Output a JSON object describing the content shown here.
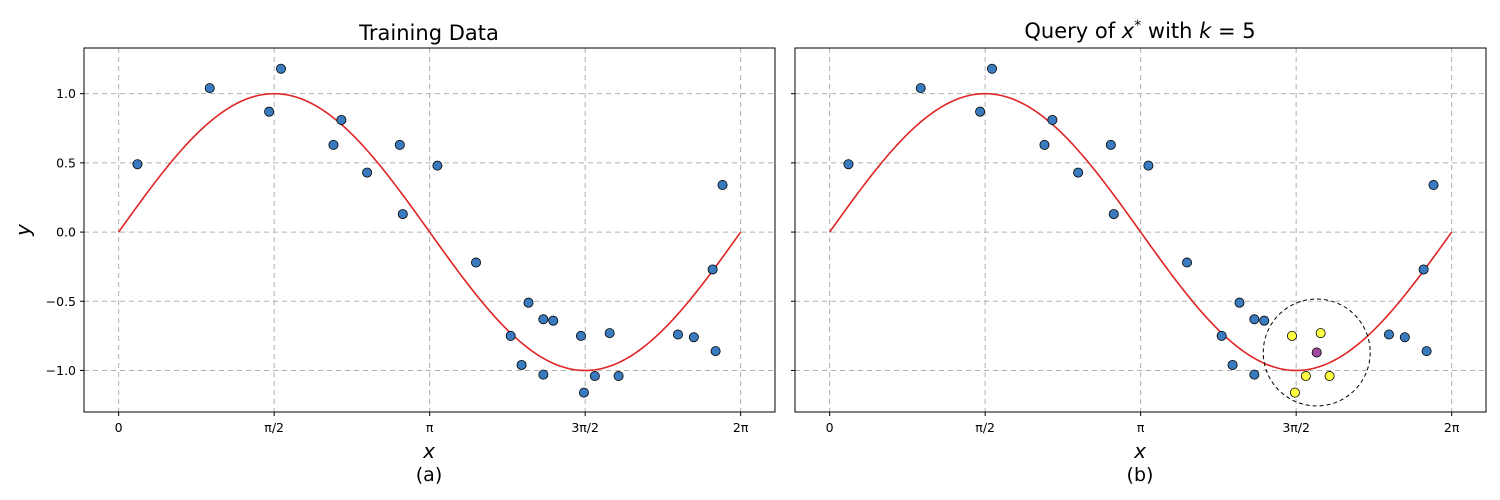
{
  "colors": {
    "point": "#3a7bbf",
    "curve": "#e02424",
    "neighbor": "#ffff44",
    "query": "#a04aa0",
    "grid": "#b0b0b0"
  },
  "chart_data": [
    {
      "type": "scatter",
      "title": "Training Data",
      "subfigure_label": "(a)",
      "xlabel": "x",
      "ylabel": "y",
      "xlim": [
        -0.35,
        6.63
      ],
      "ylim": [
        -1.3,
        1.33
      ],
      "xticks": [
        0,
        1.5708,
        3.1416,
        4.7124,
        6.2832
      ],
      "xtick_labels": [
        "0",
        "π/2",
        "π",
        "3π/2",
        "2π"
      ],
      "yticks": [
        -1.0,
        -0.5,
        0.0,
        0.5,
        1.0
      ],
      "ytick_labels": [
        "−1.0",
        "−0.5",
        "0.0",
        "0.5",
        "1.0"
      ],
      "grid": true,
      "curve": {
        "function": "sin",
        "x_range": [
          0,
          6.2832
        ]
      },
      "points": [
        {
          "x": 0.19,
          "y": 0.49
        },
        {
          "x": 0.92,
          "y": 1.04
        },
        {
          "x": 1.52,
          "y": 0.87
        },
        {
          "x": 1.64,
          "y": 1.18
        },
        {
          "x": 2.17,
          "y": 0.63
        },
        {
          "x": 2.25,
          "y": 0.81
        },
        {
          "x": 2.51,
          "y": 0.43
        },
        {
          "x": 2.84,
          "y": 0.63
        },
        {
          "x": 2.87,
          "y": 0.13
        },
        {
          "x": 3.22,
          "y": 0.48
        },
        {
          "x": 3.61,
          "y": -0.22
        },
        {
          "x": 3.96,
          "y": -0.75
        },
        {
          "x": 4.07,
          "y": -0.96
        },
        {
          "x": 4.14,
          "y": -0.51
        },
        {
          "x": 4.29,
          "y": -1.03
        },
        {
          "x": 4.29,
          "y": -0.63
        },
        {
          "x": 4.39,
          "y": -0.64
        },
        {
          "x": 4.67,
          "y": -0.75
        },
        {
          "x": 4.7,
          "y": -1.16
        },
        {
          "x": 4.81,
          "y": -1.04
        },
        {
          "x": 4.96,
          "y": -0.73
        },
        {
          "x": 5.05,
          "y": -1.04
        },
        {
          "x": 5.65,
          "y": -0.74
        },
        {
          "x": 5.81,
          "y": -0.76
        },
        {
          "x": 6.0,
          "y": -0.27
        },
        {
          "x": 6.03,
          "y": -0.86
        },
        {
          "x": 6.1,
          "y": 0.34
        }
      ]
    },
    {
      "type": "scatter",
      "title_prefix": "Query of ",
      "title_var": "x",
      "title_sup": "*",
      "title_mid": " with ",
      "title_k": "k",
      "title_eq": " = 5",
      "subfigure_label": "(b)",
      "xlabel": "x",
      "xlim": [
        -0.35,
        6.63
      ],
      "ylim": [
        -1.3,
        1.33
      ],
      "xticks": [
        0,
        1.5708,
        3.1416,
        4.7124,
        6.2832
      ],
      "xtick_labels": [
        "0",
        "π/2",
        "π",
        "3π/2",
        "2π"
      ],
      "yticks": [
        -1.0,
        -0.5,
        0.0,
        0.5,
        1.0
      ],
      "grid": true,
      "curve": {
        "function": "sin",
        "x_range": [
          0,
          6.2832
        ]
      },
      "points": [
        {
          "x": 0.19,
          "y": 0.49
        },
        {
          "x": 0.92,
          "y": 1.04
        },
        {
          "x": 1.52,
          "y": 0.87
        },
        {
          "x": 1.64,
          "y": 1.18
        },
        {
          "x": 2.17,
          "y": 0.63
        },
        {
          "x": 2.25,
          "y": 0.81
        },
        {
          "x": 2.51,
          "y": 0.43
        },
        {
          "x": 2.84,
          "y": 0.63
        },
        {
          "x": 2.87,
          "y": 0.13
        },
        {
          "x": 3.22,
          "y": 0.48
        },
        {
          "x": 3.61,
          "y": -0.22
        },
        {
          "x": 3.96,
          "y": -0.75
        },
        {
          "x": 4.07,
          "y": -0.96
        },
        {
          "x": 4.14,
          "y": -0.51
        },
        {
          "x": 4.29,
          "y": -1.03
        },
        {
          "x": 4.29,
          "y": -0.63
        },
        {
          "x": 4.39,
          "y": -0.64
        },
        {
          "x": 5.65,
          "y": -0.74
        },
        {
          "x": 5.81,
          "y": -0.76
        },
        {
          "x": 6.0,
          "y": -0.27
        },
        {
          "x": 6.03,
          "y": -0.86
        },
        {
          "x": 6.1,
          "y": 0.34
        }
      ],
      "neighbors": [
        {
          "x": 4.67,
          "y": -0.75
        },
        {
          "x": 4.7,
          "y": -1.16
        },
        {
          "x": 4.81,
          "y": -1.04
        },
        {
          "x": 4.96,
          "y": -0.73
        },
        {
          "x": 5.05,
          "y": -1.04
        }
      ],
      "query": {
        "x": 4.92,
        "y": -0.87
      },
      "neighborhood_radius_x": 0.54
    }
  ]
}
